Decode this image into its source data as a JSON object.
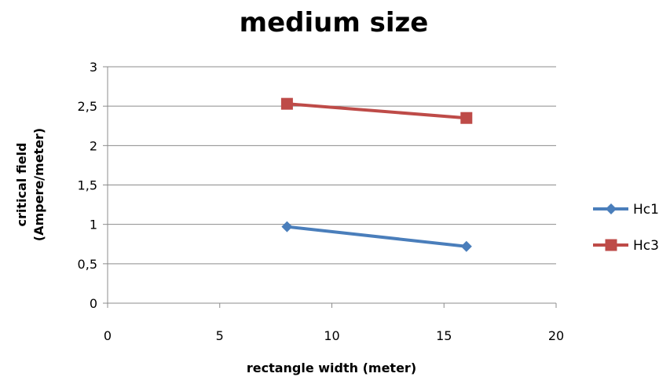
{
  "chart_data": {
    "type": "scatter",
    "title": "medium size",
    "xlabel": "rectangle width (meter)",
    "ylabel": [
      "critical field",
      "(Ampere/meter)"
    ],
    "xlim": [
      0,
      20
    ],
    "ylim": [
      0,
      3
    ],
    "xticks": [
      0,
      5,
      10,
      15,
      20
    ],
    "xtick_labels": [
      "0",
      "5",
      "10",
      "15",
      "20"
    ],
    "yticks": [
      0,
      0.5,
      1,
      1.5,
      2,
      2.5,
      3
    ],
    "ytick_labels": [
      "0",
      "0,5",
      "1",
      "1,5",
      "2",
      "2,5",
      "3"
    ],
    "grid": "horizontal",
    "legend_position": "right",
    "series": [
      {
        "name": "Hc1",
        "color": "#4a7ebb",
        "marker": "diamond",
        "x": [
          8,
          16
        ],
        "y": [
          0.97,
          0.72
        ]
      },
      {
        "name": "Hc3",
        "color": "#be4b48",
        "marker": "square",
        "x": [
          8,
          16
        ],
        "y": [
          2.53,
          2.35
        ]
      }
    ]
  }
}
